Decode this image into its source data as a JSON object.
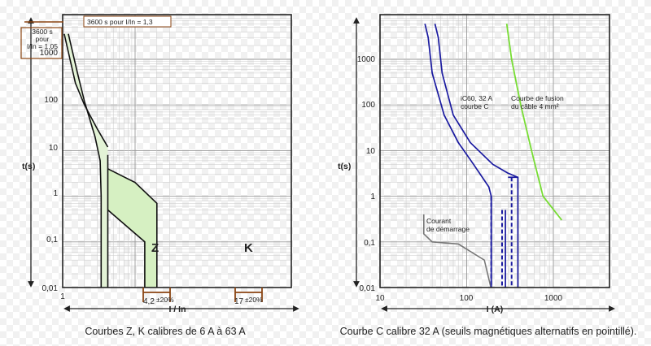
{
  "chart_data": [
    {
      "type": "area",
      "scale": {
        "x": "log",
        "y": "log"
      },
      "xlabel": "I / In",
      "ylabel": "t(s)",
      "xlim": [
        1,
        30
      ],
      "ylim": [
        0.01,
        6000
      ],
      "y_tick_labels": [
        "1000",
        "100",
        "10",
        "1",
        "0,1",
        "0,01"
      ],
      "x_tick_labels": [
        "1"
      ],
      "x_range_labels": [
        "4,2",
        "±20%",
        "17",
        "±20%"
      ],
      "annotations": [
        "3600 s pour I/In = 1,3",
        "3600 s pour I/In = 1,05"
      ],
      "annotation_numbers": [
        "1000"
      ],
      "series": [
        {
          "name": "Z",
          "upper": [
            [
              1.05,
              3600
            ],
            [
              1.5,
              300
            ],
            [
              2,
              100
            ],
            [
              3,
              30
            ],
            [
              4.2,
              12
            ]
          ],
          "lower": [
            [
              1.2,
              3600
            ],
            [
              1.6,
              500
            ],
            [
              2,
              120
            ],
            [
              2.8,
              20
            ],
            [
              3.3,
              6
            ],
            [
              3.4,
              1
            ],
            [
              3.4,
              0.01
            ]
          ],
          "right_edge": [
            [
              4.2,
              8
            ],
            [
              4.2,
              0.01
            ]
          ],
          "band_x": [
            3.4,
            4.2
          ]
        },
        {
          "name": "K",
          "upper_edge": [
            [
              4.2,
              4
            ],
            [
              10,
              2
            ],
            [
              20,
              0.7
            ],
            [
              20,
              0.01
            ]
          ],
          "lower_edge": [
            [
              4.2,
              0.5
            ],
            [
              13.6,
              0.1
            ],
            [
              13.6,
              0.01
            ]
          ],
          "band_x": [
            13.6,
            20.4
          ]
        }
      ],
      "caption": "Courbes Z, K calibres de 6 A à 63 A"
    },
    {
      "type": "line",
      "scale": {
        "x": "log",
        "y": "log"
      },
      "xlabel": "I (A)",
      "ylabel": "t(s)",
      "xlim": [
        10,
        2000
      ],
      "ylim": [
        0.01,
        6000
      ],
      "y_tick_labels": [
        "1000",
        "100",
        "10",
        "1",
        "0,1",
        "0,01"
      ],
      "x_tick_labels": [
        "10",
        "100",
        "1000"
      ],
      "series": [
        {
          "name": "iC60, 32 A courbe C",
          "color": "#1a1aa0",
          "min_curve": [
            [
              33,
              6000
            ],
            [
              36,
              3000
            ],
            [
              40,
              500
            ],
            [
              55,
              60
            ],
            [
              80,
              15
            ],
            [
              120,
              5
            ],
            [
              180,
              1.6
            ],
            [
              192,
              1.0
            ],
            [
              192,
              0.01
            ]
          ],
          "max_curve": [
            [
              43,
              6000
            ],
            [
              47,
              3000
            ],
            [
              52,
              500
            ],
            [
              70,
              60
            ],
            [
              110,
              15
            ],
            [
              200,
              5
            ],
            [
              300,
              3.2
            ],
            [
              390,
              2.6
            ],
            [
              390,
              0.01
            ]
          ],
          "inner_vertical": [
            [
              280,
              0.5
            ],
            [
              280,
              0.01
            ]
          ],
          "dashed_thresholds_A": [
            192,
            256,
            330
          ]
        },
        {
          "name": "Courbe de fusion du câble 4 mm²",
          "color": "#77dd33",
          "points": [
            [
              290,
              6000
            ],
            [
              330,
              1000
            ],
            [
              420,
              100
            ],
            [
              560,
              10
            ],
            [
              760,
              1
            ],
            [
              1250,
              0.3
            ]
          ]
        },
        {
          "name": "Courant de démarrage",
          "color": "#777777",
          "points": [
            [
              32,
              0.4
            ],
            [
              32,
              0.15
            ],
            [
              40,
              0.1
            ],
            [
              80,
              0.09
            ],
            [
              160,
              0.04
            ],
            [
              190,
              0.01
            ]
          ]
        }
      ],
      "caption": "Courbe C calibre 32 A (seuils magnétiques alternatifs en pointillé)."
    }
  ],
  "colors": {
    "band_fill": "#d6f0c2",
    "z_band_fill": "#e3f3d6",
    "axis": "#222222",
    "highlight": "#8b4513"
  }
}
